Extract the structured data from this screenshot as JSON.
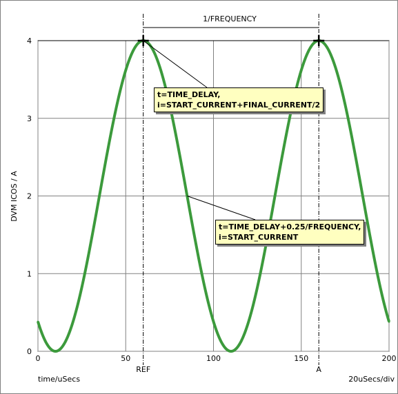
{
  "chart_data": {
    "type": "line",
    "ylabel": "DVM ICOS / A",
    "xlabel": "time/uSecs",
    "scale_label": "20uSecs/div",
    "xlim": [
      0,
      200
    ],
    "ylim": [
      0,
      4
    ],
    "x_ticks": [
      "0",
      "50",
      "100",
      "150",
      "200"
    ],
    "y_ticks": [
      "0",
      "1",
      "2",
      "3",
      "4"
    ],
    "series": [
      {
        "color": "#3c9a3c",
        "formula": "i = 2 + 2*cos(2*pi*(t - 60)/100)",
        "x": [
          0,
          10,
          35,
          60,
          85,
          110,
          135,
          160,
          185,
          200
        ],
        "y": [
          0.38,
          0,
          2,
          4,
          2,
          0,
          2,
          4,
          2,
          0.38
        ]
      }
    ],
    "markers": [
      {
        "label": "REF",
        "x": 60
      },
      {
        "label": "A",
        "x": 160
      }
    ],
    "dimension_label": "1/FREQUENCY",
    "annotations": [
      {
        "line1": "t=TIME_DELAY,",
        "line2": "i=START_CURRENT+FINAL_CURRENT/2",
        "target_x": 60,
        "target_y": 4
      },
      {
        "line1": "t=TIME_DELAY+0.25/FREQUENCY,",
        "line2": "i=START_CURRENT",
        "target_x": 85,
        "target_y": 2
      }
    ],
    "grid": true
  }
}
